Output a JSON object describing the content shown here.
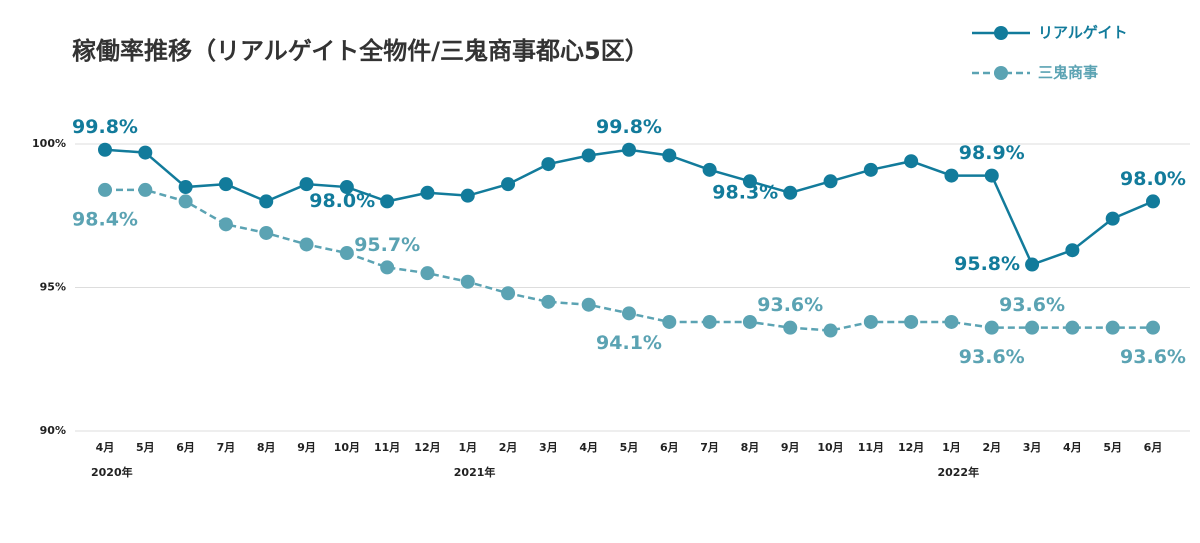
{
  "chart_data": {
    "type": "line",
    "title": "稼働率推移（リアルゲイト全物件/三鬼商事都心5区）",
    "categories": [
      "4月",
      "5月",
      "6月",
      "7月",
      "8月",
      "9月",
      "10月",
      "11月",
      "12月",
      "1月",
      "2月",
      "3月",
      "4月",
      "5月",
      "6月",
      "7月",
      "8月",
      "9月",
      "10月",
      "11月",
      "12月",
      "1月",
      "2月",
      "3月",
      "4月",
      "5月",
      "6月"
    ],
    "category_groups": [
      "2020年",
      null,
      null,
      null,
      null,
      null,
      null,
      null,
      null,
      "2021年",
      null,
      null,
      null,
      null,
      null,
      null,
      null,
      null,
      null,
      null,
      null,
      "2022年",
      null,
      null,
      null,
      null,
      null
    ],
    "ylim": [
      90,
      100
    ],
    "yticks": [
      {
        "value": 90,
        "label": "90%"
      },
      {
        "value": 95,
        "label": "95%"
      },
      {
        "value": 100,
        "label": "100%"
      }
    ],
    "grid": true,
    "legend": "top-right",
    "series": [
      {
        "name": "リアルゲイト",
        "color": "#127b9b",
        "dashed": false,
        "values": [
          99.8,
          99.7,
          98.5,
          98.6,
          98.0,
          98.6,
          98.5,
          98.0,
          98.3,
          98.2,
          98.6,
          99.3,
          99.6,
          99.8,
          99.6,
          99.1,
          98.7,
          98.3,
          98.7,
          99.1,
          99.4,
          98.9,
          98.9,
          95.8,
          96.3,
          97.4,
          98.0
        ],
        "value_labels": [
          "99.8%",
          null,
          null,
          null,
          null,
          null,
          null,
          "98.0%",
          null,
          null,
          null,
          null,
          null,
          "99.8%",
          null,
          null,
          null,
          "98.3%",
          null,
          null,
          null,
          null,
          "98.9%",
          "95.8%",
          null,
          null,
          "98.0%"
        ]
      },
      {
        "name": "三鬼商事",
        "color": "#5ba3b3",
        "dashed": true,
        "values": [
          98.4,
          98.4,
          98.0,
          97.2,
          96.9,
          96.5,
          96.2,
          95.7,
          95.5,
          95.2,
          94.8,
          94.5,
          94.4,
          94.1,
          93.8,
          93.8,
          93.8,
          93.6,
          93.5,
          93.8,
          93.8,
          93.8,
          93.6,
          93.6,
          93.6,
          93.6,
          93.6
        ],
        "value_labels": [
          "98.4%",
          null,
          null,
          null,
          null,
          null,
          null,
          "95.7%",
          null,
          null,
          null,
          null,
          null,
          "94.1%",
          null,
          null,
          null,
          "93.6%",
          null,
          null,
          null,
          null,
          "93.6%",
          "93.6%",
          null,
          null,
          "93.6%"
        ]
      }
    ]
  }
}
